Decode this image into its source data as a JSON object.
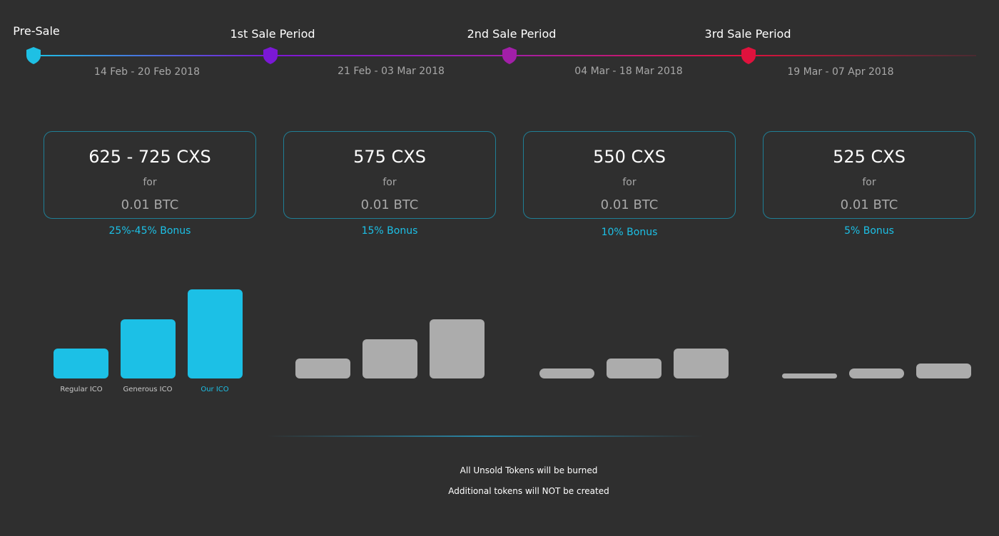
{
  "timeline": {
    "stages": [
      {
        "label": "Pre-Sale",
        "dates": "14 Feb - 20 Feb 2018",
        "color": "#1ec0e4"
      },
      {
        "label": "1st Sale Period",
        "dates": "21 Feb - 03 Mar 2018",
        "color": "#7b18d6"
      },
      {
        "label": "2nd Sale Period",
        "dates": "04 Mar - 18 Mar 2018",
        "color": "#a21fa8"
      },
      {
        "label": "3rd Sale Period",
        "dates": "19 Mar - 07 Apr 2018",
        "color": "#e0123d"
      }
    ]
  },
  "cards": [
    {
      "amount": "625 - 725 CXS",
      "for": "for",
      "price": "0.01 BTC",
      "bonus": "25%-45% Bonus"
    },
    {
      "amount": "575 CXS",
      "for": "for",
      "price": "0.01 BTC",
      "bonus": "15% Bonus"
    },
    {
      "amount": "550 CXS",
      "for": "for",
      "price": "0.01 BTC",
      "bonus": "10% Bonus"
    },
    {
      "amount": "525 CXS",
      "for": "for",
      "price": "0.01 BTC",
      "bonus": "5% Bonus"
    }
  ],
  "comparison": {
    "bar_labels": [
      "Regular ICO",
      "Generous ICO",
      "Our ICO"
    ],
    "groups": [
      {
        "levels": [
          42,
          83,
          125
        ],
        "active": true
      },
      {
        "levels": [
          28,
          55,
          83
        ],
        "active": false
      },
      {
        "levels": [
          14,
          28,
          42
        ],
        "active": false
      },
      {
        "levels": [
          7,
          14,
          21
        ],
        "active": false
      }
    ],
    "colors": {
      "active": "#1cc0e6",
      "inactive": "#acacac"
    }
  },
  "notices": {
    "line1": "All Unsold Tokens will be burned",
    "line2": "Additional tokens will NOT be created"
  }
}
